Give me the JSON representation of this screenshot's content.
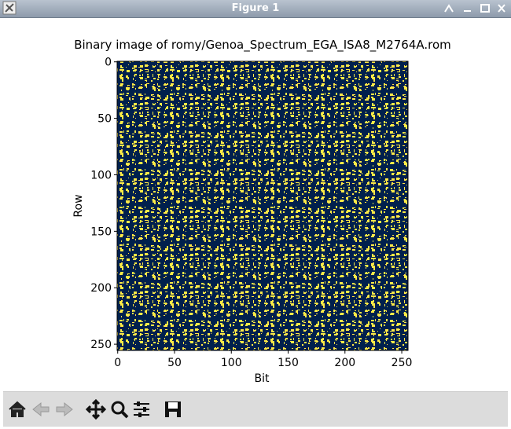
{
  "window": {
    "title": "Figure 1"
  },
  "chart_data": {
    "type": "image",
    "title": "Binary image of romy/Genoa_Spectrum_EGA_ISA8_M2764A.rom",
    "xlabel": "Bit",
    "ylabel": "Row",
    "xlim": [
      -0.5,
      255.5
    ],
    "ylim": [
      255.5,
      -0.5
    ],
    "xticks": [
      0,
      50,
      100,
      150,
      200,
      250
    ],
    "yticks": [
      0,
      50,
      100,
      150,
      200,
      250
    ],
    "colors": [
      "#00204d",
      "#ffea46"
    ]
  }
}
